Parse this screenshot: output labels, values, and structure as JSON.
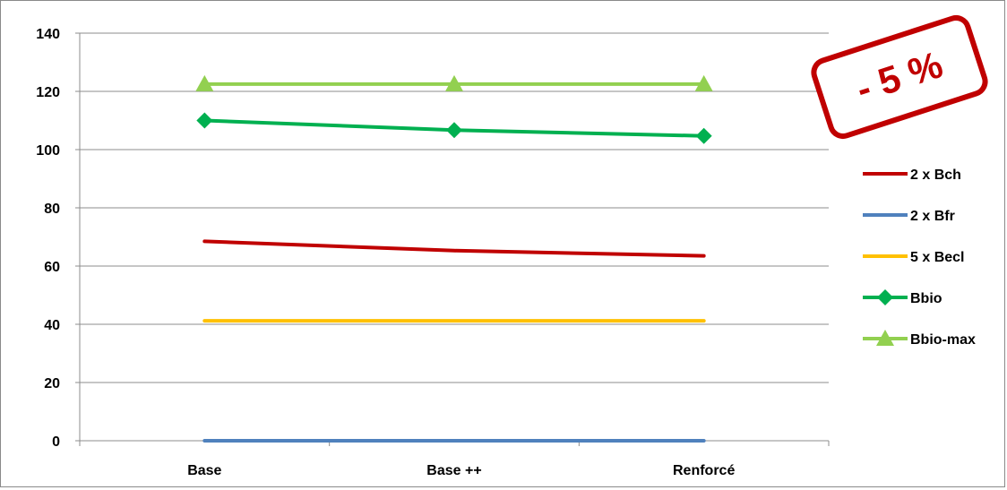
{
  "chart_data": {
    "type": "line",
    "title": "",
    "xlabel": "",
    "ylabel": "",
    "categories": [
      "Base",
      "Base ++",
      "Renforcé"
    ],
    "ylim": [
      0,
      140
    ],
    "yticks": [
      0,
      20,
      40,
      60,
      80,
      100,
      120,
      140
    ],
    "grid": true,
    "legend_position": "right",
    "series": [
      {
        "name": "2 x Bch",
        "values": [
          68.5,
          65.3,
          63.5
        ],
        "color": "#c00000",
        "marker": "none"
      },
      {
        "name": "2 x Bfr",
        "values": [
          0,
          0,
          0
        ],
        "color": "#4f81bd",
        "marker": "none"
      },
      {
        "name": "5 x Becl",
        "values": [
          41.2,
          41.2,
          41.2
        ],
        "color": "#ffc000",
        "marker": "none"
      },
      {
        "name": "Bbio",
        "values": [
          110,
          106.7,
          104.7
        ],
        "color": "#00b050",
        "marker": "diamond"
      },
      {
        "name": "Bbio-max",
        "values": [
          122.5,
          122.5,
          122.5
        ],
        "color": "#92d050",
        "marker": "triangle"
      }
    ],
    "annotation": {
      "text": "- 5 %",
      "color": "#c00000"
    }
  }
}
